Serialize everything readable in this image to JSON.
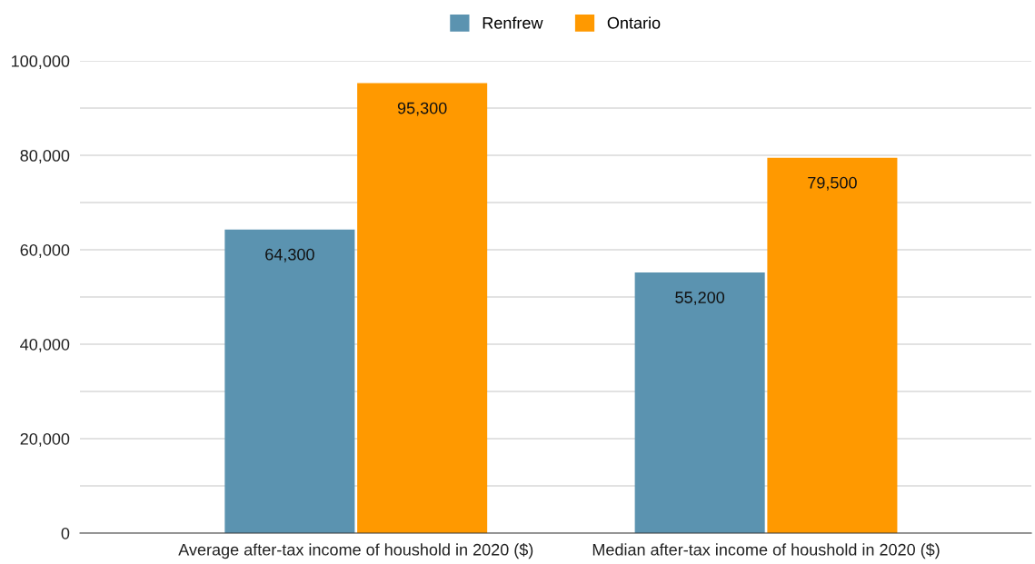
{
  "chart_data": {
    "type": "bar",
    "categories": [
      "Average after-tax income of houshold in 2020 ($)",
      "Median after-tax income of houshold in 2020 ($)"
    ],
    "series": [
      {
        "name": "Renfrew",
        "color": "#5b93b0",
        "values": [
          64300,
          55200
        ],
        "value_labels": [
          "64,300",
          "55,200"
        ]
      },
      {
        "name": "Ontario",
        "color": "#ff9900",
        "values": [
          95300,
          79500
        ],
        "value_labels": [
          "95,300",
          "79,500"
        ]
      }
    ],
    "ylim": [
      0,
      100000
    ],
    "yticks": [
      {
        "value": 0,
        "label": "0"
      },
      {
        "value": 10000,
        "label": null
      },
      {
        "value": 20000,
        "label": "20,000"
      },
      {
        "value": 30000,
        "label": null
      },
      {
        "value": 40000,
        "label": "40,000"
      },
      {
        "value": 50000,
        "label": null
      },
      {
        "value": 60000,
        "label": "60,000"
      },
      {
        "value": 70000,
        "label": null
      },
      {
        "value": 80000,
        "label": "80,000"
      },
      {
        "value": 90000,
        "label": null
      },
      {
        "value": 100000,
        "label": "100,000"
      }
    ],
    "grid": "y",
    "legend": "top"
  }
}
